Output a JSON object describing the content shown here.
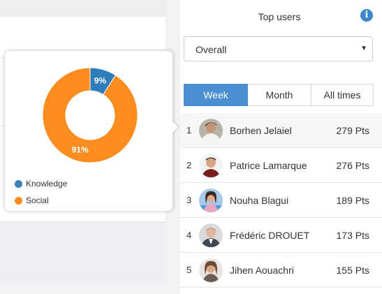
{
  "popover": {
    "chart_data": {
      "type": "pie",
      "categories": [
        "Knowledge",
        "Social"
      ],
      "values": [
        9,
        91
      ],
      "labels": [
        "9%",
        "91%"
      ],
      "colors": [
        "#2f7ebc",
        "#fb8d20"
      ],
      "title": "",
      "legend": "bottom-left"
    },
    "legend": [
      {
        "label": "Knowledge",
        "color": "#3d7fb8"
      },
      {
        "label": "Social",
        "color": "#fb8d20"
      }
    ]
  },
  "sidebar": {
    "title": "Top users",
    "info_icon": "info-icon",
    "select_value": "Overall",
    "caret": "▼",
    "tabs": [
      {
        "label": "Week",
        "active": true
      },
      {
        "label": "Month",
        "active": false
      },
      {
        "label": "All times",
        "active": false
      }
    ],
    "users": [
      {
        "rank": "1",
        "name": "Borhen Jelaiel",
        "points": "279 Pts"
      },
      {
        "rank": "2",
        "name": "Patrice Lamarque",
        "points": "276 Pts"
      },
      {
        "rank": "3",
        "name": "Nouha Blagui",
        "points": "189 Pts"
      },
      {
        "rank": "4",
        "name": "Frédéric DROUET",
        "points": "173 Pts"
      },
      {
        "rank": "5",
        "name": "Jihen Aouachri",
        "points": "155 Pts"
      }
    ],
    "accent_color": "#4a8fd1"
  }
}
